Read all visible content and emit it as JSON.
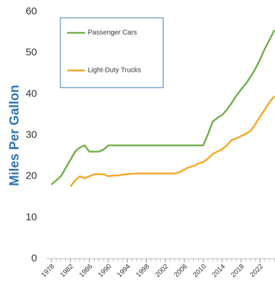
{
  "chart_data": {
    "type": "line",
    "y_label": "Miles Per Gallon",
    "x": [
      1978,
      1979,
      1980,
      1981,
      1982,
      1983,
      1984,
      1985,
      1986,
      1987,
      1988,
      1989,
      1990,
      1991,
      1992,
      1993,
      1994,
      1995,
      1996,
      1997,
      1998,
      1999,
      2000,
      2001,
      2002,
      2003,
      2004,
      2005,
      2006,
      2007,
      2008,
      2009,
      2010,
      2011,
      2012,
      2013,
      2014,
      2015,
      2016,
      2017,
      2018,
      2019,
      2020,
      2021,
      2022,
      2023,
      2024,
      2025
    ],
    "series": [
      {
        "name": "Passenger Cars",
        "color": "#70ad47",
        "values": [
          18,
          19,
          20,
          22,
          24,
          26,
          27,
          27.5,
          26,
          26,
          26,
          26.5,
          27.5,
          27.5,
          27.5,
          27.5,
          27.5,
          27.5,
          27.5,
          27.5,
          27.5,
          27.5,
          27.5,
          27.5,
          27.5,
          27.5,
          27.5,
          27.5,
          27.5,
          27.5,
          27.5,
          27.5,
          27.5,
          30.2,
          33.3,
          34.2,
          34.9,
          36.2,
          37.8,
          39.6,
          41.1,
          42.5,
          44.2,
          46.1,
          48.4,
          51,
          53.2,
          55.5
        ]
      },
      {
        "name": "Light-Duty Trucks",
        "color": "#f5a623",
        "values": [
          null,
          null,
          null,
          null,
          17.5,
          19,
          20,
          19.5,
          20,
          20.5,
          20.5,
          20.5,
          20,
          20.2,
          20.2,
          20.4,
          20.5,
          20.6,
          20.7,
          20.7,
          20.7,
          20.7,
          20.7,
          20.7,
          20.7,
          20.7,
          20.7,
          21,
          21.6,
          22.2,
          22.5,
          23.1,
          23.5,
          24.3,
          25.4,
          26,
          26.6,
          27.5,
          28.8,
          29.2,
          29.8,
          30.3,
          31,
          32.7,
          34.5,
          36.2,
          38,
          39.5
        ]
      }
    ],
    "xlim": [
      1978,
      2025
    ],
    "xticks": [
      1978,
      1982,
      1986,
      1990,
      1994,
      1998,
      2002,
      2006,
      2010,
      2014,
      2018,
      2022
    ],
    "ylim": [
      0,
      60
    ],
    "yticks": [
      0,
      10,
      20,
      30,
      40,
      50,
      60
    ],
    "grid": false
  }
}
